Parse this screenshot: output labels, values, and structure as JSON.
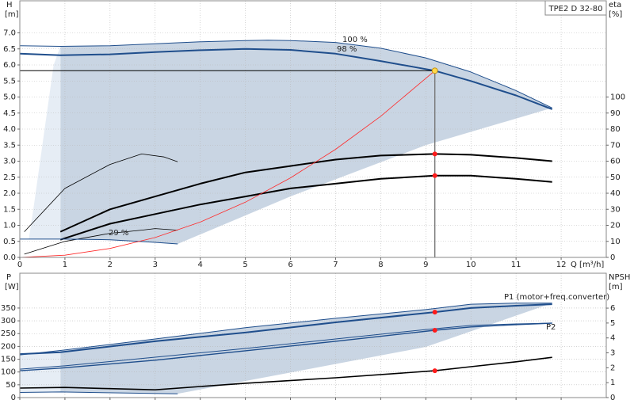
{
  "chart_data": [
    {
      "type": "line",
      "title": "TPE2 D 32-80",
      "ylabel": "H",
      "yunit": "[m]",
      "y2label": "eta",
      "y2unit": "[%]",
      "xlabel": "Q [m³/h]",
      "xlim": [
        0,
        13
      ],
      "xticks": [
        0,
        1,
        2,
        3,
        4,
        5,
        6,
        7,
        8,
        9,
        10,
        11,
        12
      ],
      "ylim": [
        0,
        8
      ],
      "yticks": [
        {
          "value": 0,
          "label": "0.0"
        },
        0.5,
        {
          "value": 1,
          "label": "1.0"
        },
        1.5,
        {
          "value": 2,
          "label": "2.0"
        },
        2.5,
        {
          "value": 3,
          "label": "3.0"
        },
        3.5,
        {
          "value": 4,
          "label": "4.0"
        },
        4.5,
        {
          "value": 5,
          "label": "5.0"
        },
        5.5,
        {
          "value": 6,
          "label": "6.0"
        },
        6.5,
        {
          "value": 7,
          "label": "7.0"
        }
      ],
      "y2lim": [
        0,
        160
      ],
      "y2ticks": [
        0,
        10,
        20,
        30,
        40,
        50,
        60,
        70,
        80,
        90,
        100
      ],
      "grid": true,
      "annotations": [
        "100 %",
        "98 %",
        "29 %"
      ],
      "regions": [
        {
          "color": "#c9d5e3",
          "x": [
            0.9,
            2,
            3,
            4,
            5,
            5.5,
            6,
            7,
            8,
            9,
            10,
            11,
            11.8,
            9,
            6,
            3.5,
            2,
            0.9
          ],
          "values": [
            6.58,
            6.6,
            6.66,
            6.72,
            6.76,
            6.77,
            6.76,
            6.7,
            6.52,
            6.22,
            5.78,
            5.2,
            4.66,
            3.5,
            1.9,
            0.42,
            0.55,
            0.57
          ]
        },
        {
          "color": "#e6edf5",
          "x": [
            0.2,
            0.3,
            0.45,
            0.6,
            0.75,
            0.9,
            0.9
          ],
          "values": [
            0.57,
            1.5,
            3,
            4.5,
            6,
            6.58,
            0.57
          ]
        }
      ],
      "series": [
        {
          "color": "#1f4e8c",
          "width": 1,
          "x": [
            0,
            0.9,
            2,
            3,
            4,
            5,
            5.5,
            6,
            7,
            8,
            9,
            10,
            11,
            11.8
          ],
          "values": [
            6.6,
            6.58,
            6.6,
            6.66,
            6.72,
            6.76,
            6.77,
            6.76,
            6.7,
            6.52,
            6.22,
            5.78,
            5.2,
            4.66
          ]
        },
        {
          "color": "#1f4e8c",
          "width": 2,
          "x": [
            0,
            0.9,
            2,
            3,
            4,
            5,
            6,
            7,
            8,
            9.2,
            10,
            11,
            11.8
          ],
          "values": [
            6.35,
            6.3,
            6.33,
            6.4,
            6.46,
            6.5,
            6.47,
            6.35,
            6.12,
            5.82,
            5.5,
            5.05,
            4.62
          ]
        },
        {
          "color": "#000000",
          "width": 2,
          "axis": "y2",
          "x": [
            0.9,
            2,
            3,
            4,
            5,
            6,
            7,
            8,
            9.2,
            10,
            11,
            11.8
          ],
          "values": [
            16,
            30,
            38,
            46,
            53,
            57,
            61,
            63.5,
            64.5,
            64,
            62,
            60
          ]
        },
        {
          "color": "#000000",
          "width": 2,
          "axis": "y2",
          "x": [
            0.9,
            2,
            3,
            4,
            5,
            6,
            7,
            8,
            9.2,
            10,
            11,
            11.8
          ],
          "values": [
            11,
            21,
            27,
            33,
            38,
            43,
            46,
            49,
            51,
            51,
            49,
            47
          ]
        },
        {
          "color": "#000000",
          "width": 0.8,
          "axis": "y2",
          "x": [
            0.1,
            1,
            2,
            2.7,
            3.2,
            3.5
          ],
          "values": [
            16,
            43,
            58,
            64.5,
            62.6,
            59.6
          ]
        },
        {
          "color": "#000000",
          "width": 0.8,
          "axis": "y2",
          "x": [
            0.1,
            1,
            2,
            2.7,
            3,
            3.5
          ],
          "values": [
            2,
            10,
            15,
            17,
            18,
            17
          ]
        },
        {
          "color": "#1f4e8c",
          "width": 1,
          "x": [
            0,
            0.9,
            2,
            3,
            3.5
          ],
          "values": [
            0.57,
            0.57,
            0.55,
            0.47,
            0.42
          ]
        },
        {
          "color": "#ff2a2a",
          "width": 0.8,
          "x": [
            0,
            1,
            2,
            3,
            4,
            5,
            6,
            7,
            8,
            9.2
          ],
          "values": [
            0,
            0.07,
            0.28,
            0.62,
            1.1,
            1.72,
            2.48,
            3.37,
            4.4,
            5.82
          ]
        }
      ],
      "points": [
        {
          "color": "#ff1a1a",
          "axis": "y2",
          "x": [
            9.2,
            9.2
          ],
          "values": [
            64.5,
            51
          ]
        }
      ],
      "duty_point": {
        "color": "#ffd84a",
        "x": 9.2,
        "value": 5.82
      }
    },
    {
      "type": "line",
      "ylabel": "P",
      "yunit": "[W]",
      "y2label": "NPSH",
      "y2unit": "[m]",
      "xlim": [
        0,
        13
      ],
      "xticks": [
        0,
        1,
        2,
        3,
        4,
        5,
        6,
        7,
        8,
        9,
        10,
        11,
        12
      ],
      "ylim": [
        0,
        486
      ],
      "yticks": [
        0,
        50,
        100,
        150,
        200,
        250,
        300,
        350
      ],
      "y2lim": [
        0,
        8.34
      ],
      "y2ticks": [
        0,
        1,
        2,
        3,
        4,
        5,
        6
      ],
      "grid": true,
      "annotations": [
        "P1 (motor+freq.converter)",
        "P2"
      ],
      "regions": [
        {
          "color": "#c9d5e3",
          "x": [
            0.9,
            3,
            5,
            7,
            9,
            10,
            11,
            11.8,
            9,
            6,
            3.5,
            0.9
          ],
          "values": [
            182,
            229,
            273,
            310,
            344,
            365,
            369,
            369,
            198,
            98,
            15,
            22
          ]
        },
        {
          "color": "#e6edf5",
          "x": [
            0,
            0.9,
            0.9,
            0
          ],
          "values": [
            167,
            182,
            22,
            20
          ]
        }
      ],
      "series": [
        {
          "color": "#1f4e8c",
          "width": 1,
          "x": [
            0,
            1,
            3,
            5,
            7,
            9,
            10,
            11,
            11.8
          ],
          "values": [
            167,
            186,
            229,
            273,
            310,
            344,
            365,
            369,
            369
          ]
        },
        {
          "color": "#1f4e8c",
          "width": 2,
          "x": [
            0,
            0.9,
            3,
            5,
            7,
            9.2,
            10,
            11,
            11.8
          ],
          "values": [
            170,
            177,
            220,
            254,
            294,
            334,
            350,
            359,
            365
          ]
        },
        {
          "color": "#1f4e8c",
          "width": 1,
          "x": [
            0,
            1,
            3,
            5,
            7,
            9,
            10,
            11,
            11.8
          ],
          "values": [
            111,
            124,
            158,
            192,
            229,
            266,
            282,
            288,
            291
          ]
        },
        {
          "color": "#1f4e8c",
          "width": 1.4,
          "x": [
            0,
            0.9,
            3,
            5,
            7,
            9.2,
            10,
            11,
            11.8
          ],
          "values": [
            105,
            115,
            146,
            183,
            220,
            263,
            276,
            285,
            291
          ]
        },
        {
          "color": "#1f4e8c",
          "width": 1,
          "x": [
            0,
            0.9,
            3.5
          ],
          "values": [
            20,
            22,
            15
          ]
        },
        {
          "color": "#000000",
          "width": 1.6,
          "axis": "y2",
          "x": [
            0,
            1,
            2,
            3,
            5,
            7,
            9.2,
            10,
            11,
            11.8
          ],
          "values": [
            0.64,
            0.68,
            0.6,
            0.52,
            0.96,
            1.33,
            1.8,
            2.07,
            2.4,
            2.7
          ]
        }
      ],
      "points": [
        {
          "color": "#ff1a1a",
          "x": [
            9.2,
            9.2
          ],
          "values": [
            334,
            263
          ]
        },
        {
          "color": "#ff1a1a",
          "axis": "y2",
          "x": [
            9.2
          ],
          "values": [
            1.8
          ]
        }
      ]
    }
  ]
}
